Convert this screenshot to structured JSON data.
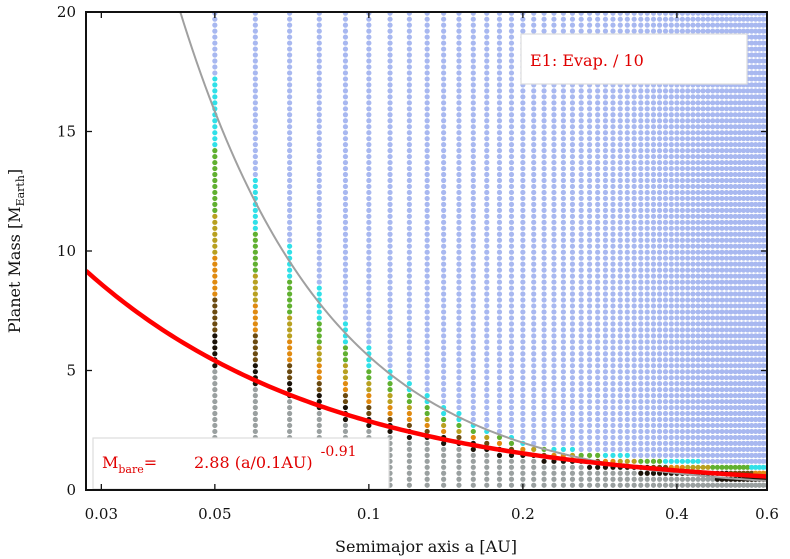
{
  "chart_data": {
    "type": "scatter",
    "title": "",
    "xlabel": "Semimajor axis a [AU]",
    "ylabel_main": "Planet Mass [M",
    "ylabel_sub": "Earth",
    "ylabel_close": "]",
    "x_scale": "log",
    "xlim": [
      0.028,
      0.6
    ],
    "ylim": [
      0,
      20
    ],
    "x_ticks": [
      0.03,
      0.05,
      0.1,
      0.2,
      0.4,
      0.6
    ],
    "x_tick_labels": [
      "0.03",
      "0.05",
      "0.1",
      "0.2",
      "0.4",
      "0.6"
    ],
    "y_ticks": [
      0,
      5,
      10,
      15,
      20
    ],
    "y_tick_labels": [
      "0",
      "5",
      "10",
      "15",
      "20"
    ],
    "grid": false,
    "annotation_top": "E1: Evap. / 10",
    "annotation_formula": {
      "m": "M",
      "sub": "bare",
      "eq": "=",
      "body": "2.88 (a/0.1AU)",
      "exp": "-0.91"
    },
    "series": [
      {
        "label": "bare-core threshold",
        "kind": "power-law",
        "coef": 2.88,
        "ref": 0.1,
        "exponent": -0.91,
        "color": "#ff0000",
        "range": [
          0.028,
          0.6
        ]
      },
      {
        "label": "gray curve",
        "kind": "power-law",
        "coef": 5.6,
        "ref": 0.1,
        "exponent": -1.5,
        "color": "#a0a0a0",
        "range": [
          0.028,
          0.6
        ]
      }
    ],
    "grid_points": {
      "x_values": [
        0.05,
        0.06,
        0.07,
        0.08,
        0.09,
        0.1,
        0.11,
        0.12,
        0.13,
        0.14,
        0.15,
        0.16,
        0.17,
        0.18,
        0.19,
        0.2,
        0.21,
        0.22,
        0.23,
        0.24,
        0.25,
        0.26,
        0.27,
        0.28,
        0.29,
        0.3,
        0.31,
        0.32,
        0.33,
        0.34,
        0.35,
        0.36,
        0.37,
        0.38,
        0.39,
        0.4,
        0.41,
        0.42,
        0.43,
        0.44,
        0.45,
        0.46,
        0.47,
        0.48,
        0.49,
        0.5,
        0.51,
        0.52,
        0.53,
        0.54,
        0.55,
        0.56,
        0.57,
        0.58,
        0.59,
        0.6
      ],
      "m_start": 0.2,
      "m_stop": 20,
      "m_step": 0.25,
      "color_scale": [
        "#9aa0a0",
        "#1a1208",
        "#6b4a10",
        "#e08a10",
        "#b8a020",
        "#60b030",
        "#30e0e8",
        "#a8b8f0"
      ]
    }
  }
}
